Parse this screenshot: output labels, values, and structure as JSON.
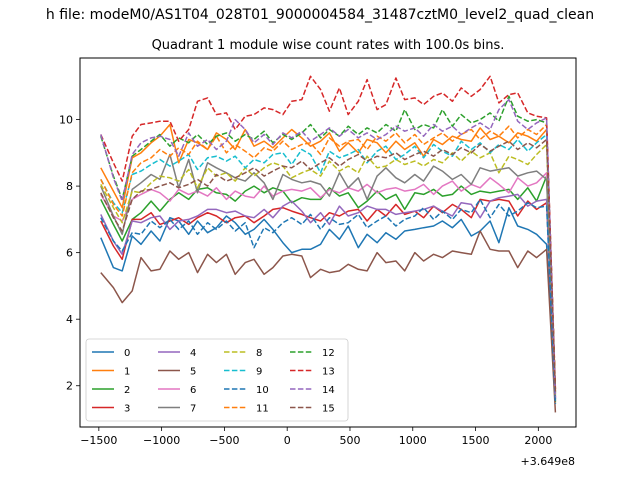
{
  "chart_data": {
    "type": "line",
    "suptitle": "h file: modeM0/AS1T04_028T01_9000004584_31487cztM0_level2_quad_clean",
    "title": "Quadrant 1 module wise count rates with 100.0s bins.",
    "xlabel": "",
    "ylabel": "",
    "x_offset_label": "+3.649e8",
    "xlim": [
      -1650,
      2300
    ],
    "ylim": [
      0.76,
      11.85
    ],
    "xticks": [
      -1500,
      -1000,
      -500,
      0,
      500,
      1000,
      1500,
      2000
    ],
    "xtick_labels": [
      "−1500",
      "−1000",
      "−500",
      "0",
      "500",
      "1000",
      "1500",
      "2000"
    ],
    "yticks": [
      2,
      4,
      6,
      8,
      10
    ],
    "ytick_labels": [
      "2",
      "4",
      "6",
      "8",
      "10"
    ],
    "legend_position": "lower left",
    "x": [
      -1484,
      -1384,
      -1314,
      -1234,
      -1164,
      -1084,
      -1014,
      -934,
      -864,
      -784,
      -714,
      -634,
      -564,
      -484,
      -414,
      -334,
      -264,
      -184,
      -114,
      -34,
      36,
      116,
      186,
      266,
      336,
      416,
      486,
      566,
      636,
      716,
      786,
      866,
      936,
      1016,
      1086,
      1166,
      1236,
      1316,
      1386,
      1466,
      1536,
      1616,
      1686,
      1766,
      1836,
      1916,
      1986,
      2066,
      2136
    ],
    "series": [
      {
        "name": "0",
        "color": "#1f77b4",
        "dash": "solid",
        "values": [
          6.45,
          5.55,
          5.45,
          6.5,
          6.25,
          6.65,
          6.35,
          7.05,
          6.95,
          6.55,
          6.95,
          6.6,
          6.75,
          7.1,
          6.9,
          6.55,
          6.7,
          7.0,
          6.7,
          6.3,
          6.0,
          6.1,
          6.1,
          6.25,
          6.7,
          6.4,
          6.8,
          6.15,
          6.55,
          6.3,
          6.6,
          6.4,
          6.65,
          6.7,
          6.75,
          6.8,
          6.95,
          6.75,
          7.0,
          6.5,
          6.65,
          6.95,
          6.3,
          7.35,
          6.8,
          6.7,
          6.55,
          6.25,
          1.6
        ]
      },
      {
        "name": "1",
        "color": "#ff7f0e",
        "dash": "solid",
        "values": [
          8.55,
          7.85,
          7.35,
          8.85,
          9.0,
          9.3,
          9.5,
          9.85,
          8.7,
          9.4,
          9.3,
          9.1,
          9.6,
          9.4,
          9.1,
          9.7,
          9.2,
          9.35,
          9.15,
          9.45,
          9.7,
          9.45,
          9.2,
          9.35,
          9.6,
          9.05,
          9.3,
          9.0,
          9.4,
          9.3,
          9.0,
          9.35,
          9.1,
          9.3,
          8.9,
          9.4,
          9.25,
          9.5,
          9.4,
          9.35,
          9.75,
          9.4,
          9.5,
          9.3,
          9.6,
          9.5,
          9.35,
          9.7,
          1.8
        ]
      },
      {
        "name": "2",
        "color": "#2ca02c",
        "dash": "solid",
        "values": [
          7.6,
          6.85,
          6.35,
          7.0,
          7.2,
          7.55,
          7.25,
          7.6,
          7.8,
          7.6,
          7.9,
          7.95,
          7.8,
          7.75,
          7.55,
          7.85,
          8.0,
          7.8,
          7.95,
          7.85,
          7.5,
          7.65,
          7.6,
          7.6,
          7.95,
          7.7,
          7.8,
          7.35,
          7.55,
          7.85,
          7.6,
          7.75,
          7.3,
          7.8,
          7.75,
          7.9,
          7.7,
          7.75,
          8.0,
          7.75,
          7.85,
          7.8,
          7.85,
          7.9,
          7.6,
          7.95,
          7.55,
          8.3,
          1.5
        ]
      },
      {
        "name": "3",
        "color": "#d62728",
        "dash": "solid",
        "values": [
          6.95,
          6.2,
          5.8,
          7.0,
          7.0,
          7.2,
          6.85,
          6.95,
          7.05,
          6.85,
          7.05,
          7.2,
          7.1,
          6.9,
          7.05,
          7.1,
          6.9,
          7.1,
          7.3,
          7.35,
          7.25,
          7.15,
          7.05,
          6.95,
          7.2,
          7.1,
          7.25,
          7.3,
          6.95,
          7.3,
          7.1,
          7.45,
          7.15,
          7.25,
          7.05,
          7.4,
          7.2,
          7.45,
          7.3,
          7.05,
          7.6,
          7.55,
          7.6,
          7.55,
          7.1,
          7.55,
          7.3,
          7.5,
          1.65
        ]
      },
      {
        "name": "4",
        "color": "#9467bd",
        "dash": "solid",
        "values": [
          7.15,
          6.35,
          5.95,
          6.95,
          6.9,
          7.05,
          7.1,
          6.7,
          6.95,
          7.0,
          7.1,
          7.3,
          7.3,
          7.2,
          7.25,
          7.1,
          7.05,
          7.3,
          7.05,
          7.4,
          7.55,
          7.25,
          6.9,
          7.2,
          6.85,
          7.4,
          7.1,
          7.2,
          7.4,
          7.3,
          7.3,
          7.15,
          7.2,
          7.25,
          7.3,
          7.4,
          7.25,
          7.1,
          7.5,
          7.45,
          7.05,
          7.55,
          7.65,
          7.7,
          7.75,
          7.4,
          7.55,
          7.6,
          1.7
        ]
      },
      {
        "name": "5",
        "color": "#8c564b",
        "dash": "solid",
        "values": [
          5.4,
          4.95,
          4.5,
          4.85,
          5.85,
          5.45,
          5.5,
          6.05,
          5.8,
          6.0,
          5.4,
          5.95,
          5.7,
          5.95,
          5.35,
          5.7,
          5.8,
          5.35,
          5.55,
          5.9,
          5.95,
          5.9,
          5.25,
          5.5,
          5.4,
          5.45,
          5.65,
          5.5,
          5.45,
          6.0,
          5.7,
          5.75,
          5.45,
          6.0,
          5.75,
          5.95,
          5.85,
          6.05,
          6.0,
          5.95,
          6.65,
          6.1,
          6.05,
          6.05,
          5.55,
          6.05,
          5.85,
          6.1,
          1.2
        ]
      },
      {
        "name": "6",
        "color": "#e377c2",
        "dash": "solid",
        "values": [
          7.75,
          7.1,
          6.95,
          7.6,
          7.75,
          7.9,
          7.8,
          7.55,
          7.9,
          7.75,
          7.85,
          7.7,
          7.95,
          7.6,
          7.85,
          7.7,
          7.65,
          8.0,
          7.7,
          7.85,
          7.9,
          7.85,
          7.95,
          7.65,
          7.9,
          7.8,
          7.95,
          7.85,
          8.05,
          7.8,
          7.9,
          7.95,
          7.85,
          7.9,
          8.05,
          7.75,
          8.0,
          8.15,
          7.85,
          8.05,
          7.95,
          8.25,
          8.05,
          7.8,
          8.25,
          8.0,
          8.1,
          8.4,
          1.6
        ]
      },
      {
        "name": "7",
        "color": "#7f7f7f",
        "dash": "solid",
        "values": [
          8.0,
          7.1,
          6.55,
          7.9,
          8.1,
          8.35,
          8.2,
          8.95,
          7.95,
          8.8,
          7.8,
          8.7,
          8.55,
          8.4,
          8.25,
          8.15,
          8.4,
          8.1,
          7.6,
          8.35,
          8.2,
          8.1,
          8.15,
          8.05,
          7.7,
          8.4,
          7.95,
          8.25,
          7.6,
          8.3,
          8.55,
          8.25,
          8.1,
          8.35,
          8.15,
          8.6,
          8.45,
          8.2,
          8.35,
          8.05,
          8.55,
          8.45,
          8.5,
          8.55,
          8.3,
          8.4,
          8.45,
          8.2,
          1.55
        ]
      },
      {
        "name": "8",
        "color": "#bcbd22",
        "dash": "dashed",
        "values": [
          8.05,
          7.35,
          6.9,
          7.85,
          7.8,
          8.1,
          8.3,
          8.25,
          8.15,
          8.5,
          7.95,
          8.55,
          8.3,
          8.4,
          8.15,
          8.55,
          8.3,
          8.55,
          8.7,
          8.6,
          8.25,
          8.4,
          8.5,
          8.3,
          8.75,
          8.45,
          8.6,
          8.4,
          8.9,
          8.55,
          8.6,
          8.8,
          8.65,
          8.75,
          8.6,
          8.8,
          8.7,
          9.0,
          8.75,
          9.05,
          8.85,
          9.0,
          8.4,
          8.9,
          8.8,
          8.65,
          8.95,
          9.25,
          1.75
        ]
      },
      {
        "name": "9",
        "color": "#17becf",
        "dash": "dashed",
        "values": [
          8.2,
          7.5,
          7.2,
          8.35,
          8.45,
          8.65,
          8.8,
          8.6,
          8.75,
          8.95,
          8.5,
          8.85,
          8.9,
          8.75,
          8.9,
          8.55,
          8.8,
          8.7,
          8.95,
          9.0,
          8.65,
          9.1,
          8.95,
          8.4,
          9.05,
          8.85,
          8.95,
          9.1,
          8.7,
          9.05,
          9.2,
          8.8,
          8.95,
          9.2,
          8.85,
          9.25,
          9.05,
          8.9,
          9.35,
          9.1,
          9.3,
          9.0,
          9.25,
          9.1,
          9.4,
          9.05,
          9.3,
          9.55,
          1.75
        ]
      },
      {
        "name": "10",
        "color": "#1f77b4",
        "dash": "dashed",
        "values": [
          7.05,
          6.35,
          6.05,
          6.6,
          6.55,
          6.95,
          6.75,
          7.0,
          6.7,
          6.95,
          6.55,
          6.9,
          6.7,
          6.95,
          6.65,
          6.9,
          6.15,
          6.75,
          6.6,
          6.9,
          7.05,
          6.85,
          7.15,
          6.7,
          7.05,
          6.85,
          6.9,
          7.15,
          6.75,
          6.95,
          7.1,
          6.8,
          7.0,
          7.1,
          7.35,
          7.0,
          7.25,
          7.0,
          7.3,
          7.2,
          7.6,
          7.05,
          7.45,
          7.1,
          7.25,
          7.5,
          7.35,
          7.4,
          1.45
        ]
      },
      {
        "name": "11",
        "color": "#ff7f0e",
        "dash": "dashed",
        "values": [
          8.2,
          7.45,
          7.1,
          8.4,
          8.7,
          8.85,
          9.1,
          8.9,
          9.15,
          8.95,
          9.35,
          9.1,
          9.5,
          9.0,
          9.25,
          9.05,
          8.85,
          9.15,
          9.05,
          9.35,
          9.1,
          9.25,
          9.3,
          8.95,
          9.45,
          9.2,
          9.35,
          9.4,
          9.1,
          9.5,
          9.35,
          9.6,
          9.3,
          9.55,
          9.25,
          9.45,
          9.6,
          9.35,
          9.55,
          9.7,
          9.4,
          9.65,
          9.5,
          9.8,
          9.45,
          9.7,
          9.55,
          9.85,
          1.85
        ]
      },
      {
        "name": "12",
        "color": "#2ca02c",
        "dash": "dashed",
        "values": [
          9.5,
          8.3,
          7.6,
          8.9,
          9.1,
          9.35,
          9.55,
          9.2,
          9.45,
          9.3,
          9.55,
          9.25,
          9.5,
          9.6,
          9.35,
          9.55,
          9.4,
          9.65,
          9.3,
          9.55,
          9.4,
          9.6,
          9.85,
          9.45,
          9.7,
          9.5,
          9.8,
          9.55,
          9.75,
          9.6,
          9.85,
          9.65,
          10.3,
          9.7,
          9.85,
          9.75,
          10.3,
          9.8,
          10.15,
          9.9,
          10.0,
          10.2,
          9.95,
          10.7,
          10.1,
          9.95,
          10.0,
          9.9,
          1.85
        ]
      },
      {
        "name": "13",
        "color": "#d62728",
        "dash": "dashed",
        "values": [
          9.55,
          8.7,
          8.15,
          9.5,
          9.85,
          9.9,
          9.95,
          9.95,
          9.35,
          9.7,
          10.55,
          10.65,
          10.15,
          10.2,
          9.7,
          10.1,
          10.15,
          10.35,
          10.3,
          10.15,
          10.55,
          10.6,
          11.3,
          10.9,
          10.25,
          10.95,
          10.15,
          10.55,
          11.2,
          10.3,
          10.45,
          11.25,
          10.6,
          10.65,
          10.45,
          10.7,
          10.8,
          10.55,
          10.95,
          10.7,
          10.9,
          11.3,
          10.5,
          10.75,
          10.8,
          10.2,
          10.1,
          10.05,
          1.9
        ]
      },
      {
        "name": "14",
        "color": "#9467bd",
        "dash": "dashed",
        "values": [
          9.55,
          8.25,
          7.55,
          8.95,
          9.3,
          9.45,
          9.5,
          9.4,
          8.9,
          9.6,
          9.2,
          9.4,
          9.1,
          9.35,
          10.0,
          9.7,
          9.3,
          9.55,
          9.25,
          9.6,
          9.45,
          9.65,
          9.35,
          9.55,
          9.75,
          9.5,
          9.7,
          9.45,
          9.6,
          9.4,
          9.55,
          9.8,
          9.65,
          9.75,
          9.5,
          9.85,
          9.65,
          9.8,
          9.55,
          9.75,
          9.9,
          9.7,
          10.3,
          10.6,
          9.95,
          9.7,
          9.9,
          10.05,
          1.65
        ]
      },
      {
        "name": "15",
        "color": "#8c564b",
        "dash": "dashed",
        "values": [
          7.8,
          7.05,
          6.65,
          7.6,
          7.85,
          7.9,
          8.0,
          8.1,
          7.95,
          8.05,
          8.2,
          8.0,
          8.35,
          8.15,
          8.25,
          8.4,
          8.55,
          8.3,
          8.45,
          8.6,
          8.55,
          8.75,
          8.5,
          8.7,
          8.85,
          8.6,
          8.8,
          8.95,
          8.75,
          8.9,
          8.85,
          9.0,
          8.8,
          8.95,
          9.05,
          8.9,
          9.1,
          8.95,
          9.15,
          9.0,
          9.25,
          9.05,
          9.2,
          9.35,
          9.1,
          9.3,
          9.15,
          9.4,
          1.8
        ]
      }
    ]
  }
}
